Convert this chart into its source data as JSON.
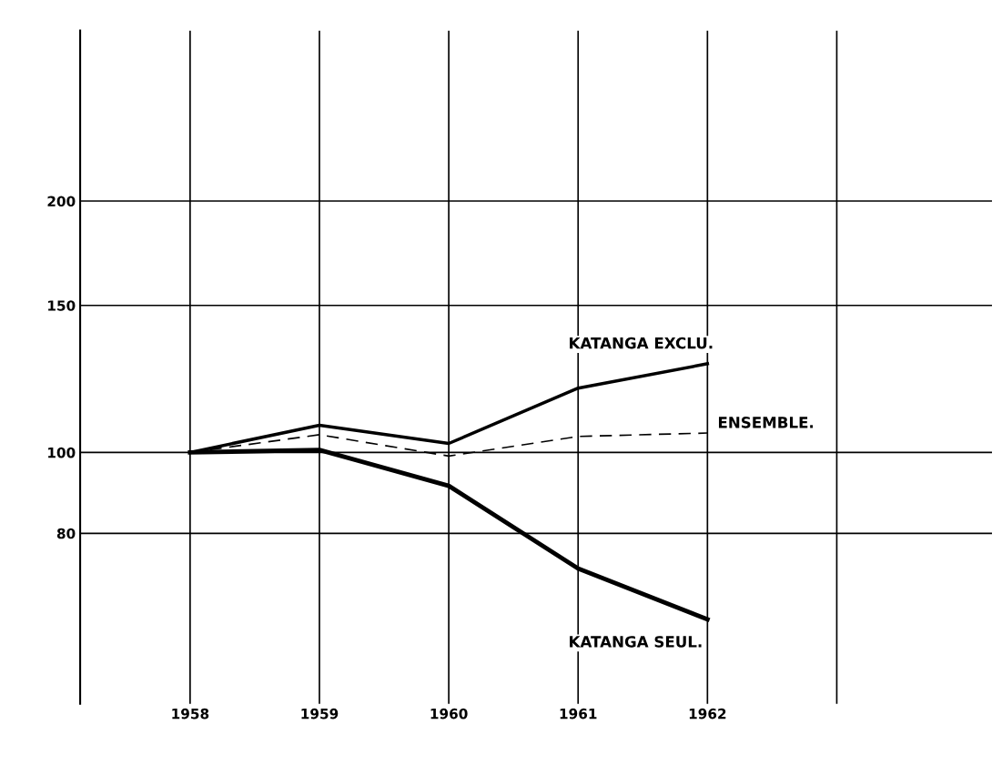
{
  "chart_data": {
    "type": "line",
    "x": [
      1958,
      1959,
      1960,
      1961,
      1962
    ],
    "series": [
      {
        "name": "KATANGA EXCLU.",
        "color": "#000000",
        "values": [
          100,
          107.8,
          102.5,
          119.4,
          127.7
        ],
        "line_style": "solid"
      },
      {
        "name": "ENSEMBLE.",
        "color": "#000000",
        "values": [
          100,
          105,
          99,
          104.5,
          105.5
        ],
        "line_style": "dashed"
      },
      {
        "name": "KATANGA SEUL.",
        "color": "#000000",
        "values": [
          100,
          100.7,
          91.2,
          72.6,
          63.1
        ],
        "line_style": "solid"
      }
    ],
    "log": "y",
    "ylim": [
      50,
      320
    ],
    "yticks": [
      80,
      100,
      150,
      200
    ],
    "xlim": [
      1957.15,
      1964.2
    ],
    "xticks": [
      1958,
      1959,
      1960,
      1961,
      1962,
      {
        "value": 1963,
        "label": null
      }
    ],
    "grid": true,
    "legend": false,
    "marker": "none"
  }
}
